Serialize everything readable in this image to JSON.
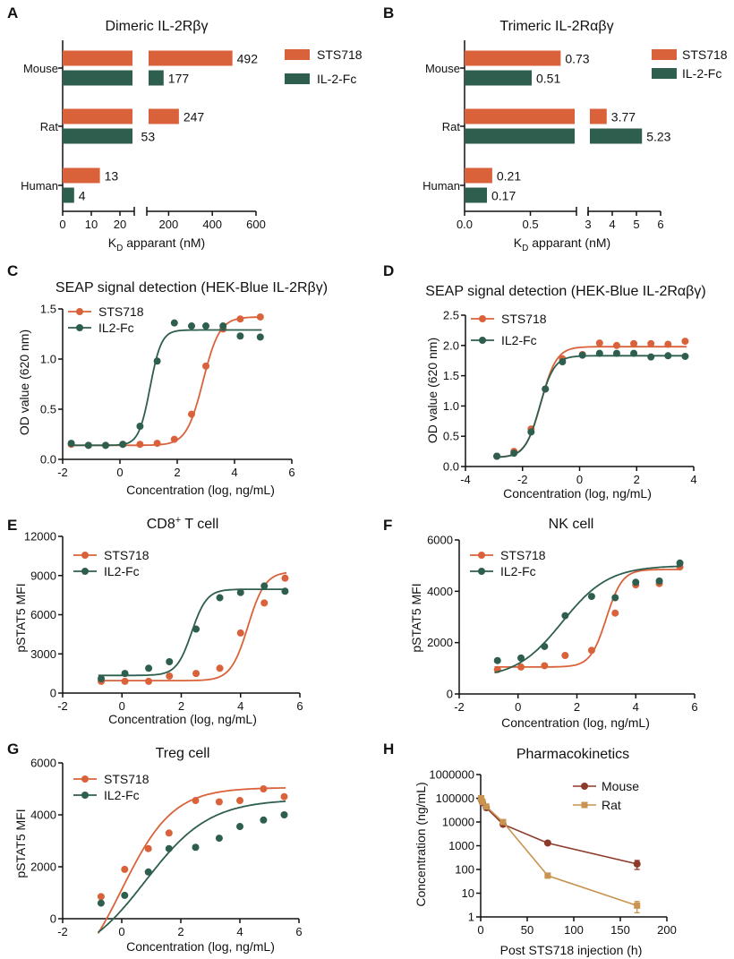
{
  "colors": {
    "sts718": "#D9623B",
    "il2fc": "#2E5E4E",
    "mouse": "#8E3A2A",
    "rat": "#C8944F"
  },
  "chart_data": [
    {
      "panel": "A",
      "type": "bar",
      "orientation": "horizontal",
      "title": "Dimeric IL-2Rβγ",
      "xlabel_main": "K",
      "xlabel_sub": "D",
      "xlabel_rest": " apparant (nM)",
      "categories": [
        "Mouse",
        "Rat",
        "Human"
      ],
      "series": [
        {
          "name": "STS718",
          "values": [
            492,
            247,
            13
          ],
          "labels": [
            "492",
            "247",
            "13"
          ]
        },
        {
          "name": "IL-2-Fc",
          "values": [
            177,
            53,
            4
          ],
          "labels": [
            "177",
            "53",
            "4"
          ]
        }
      ],
      "axis_break": {
        "low": [
          0,
          25
        ],
        "high": [
          100,
          600
        ]
      },
      "xticks_low": [
        "0",
        "10",
        "20"
      ],
      "xticks_high": [
        "200",
        "400",
        "600"
      ]
    },
    {
      "panel": "B",
      "type": "bar",
      "orientation": "horizontal",
      "title": "Trimeric IL-2Rαβγ",
      "xlabel_main": "K",
      "xlabel_sub": "D",
      "xlabel_rest": " apparant (nM)",
      "categories": [
        "Mouse",
        "Rat",
        "Human"
      ],
      "series": [
        {
          "name": "STS718",
          "values": [
            0.73,
            3.77,
            0.21
          ],
          "labels": [
            "0.73",
            "3.77",
            "0.21"
          ]
        },
        {
          "name": "IL-2-Fc",
          "values": [
            0.51,
            5.23,
            0.17
          ],
          "labels": [
            "0.51",
            "5.23",
            "0.17"
          ]
        }
      ],
      "axis_break": {
        "low": [
          0,
          0.85
        ],
        "high": [
          3,
          6
        ]
      },
      "xticks_low": [
        "0.0",
        "0.5"
      ],
      "xticks_high": [
        "3",
        "4",
        "5",
        "6"
      ]
    },
    {
      "panel": "C",
      "type": "scatter",
      "title": "SEAP signal detection (HEK-Blue IL-2Rβγ)",
      "xlabel": "Concentration (log, ng/mL)",
      "ylabel": "OD value (620 nm)",
      "xlim": [
        -2,
        6
      ],
      "ylim": [
        0,
        1.5
      ],
      "xticks": [
        -2,
        0,
        2,
        4,
        6
      ],
      "xtick_labels": [
        "-2",
        "0",
        "2",
        "4",
        "6"
      ],
      "yticks": [
        0,
        0.5,
        1,
        1.5
      ],
      "ytick_labels": [
        "0.0",
        "0.5",
        "1.0",
        "1.5"
      ],
      "legend": "top-left",
      "series": [
        {
          "name": "STS718",
          "x": [
            -1.7,
            -1.1,
            -0.5,
            0.1,
            0.7,
            1.3,
            1.9,
            2.5,
            3.0,
            3.6,
            4.2,
            4.9
          ],
          "y": [
            0.15,
            0.14,
            0.14,
            0.15,
            0.15,
            0.16,
            0.2,
            0.45,
            0.93,
            1.3,
            1.4,
            1.42
          ],
          "fit": {
            "bottom": 0.14,
            "top": 1.42,
            "ec50": 2.9,
            "slope": 1.5
          }
        },
        {
          "name": "IL2-Fc",
          "x": [
            -1.7,
            -1.1,
            -0.5,
            0.1,
            0.7,
            1.3,
            1.9,
            2.5,
            3.0,
            3.6,
            4.2,
            4.9
          ],
          "y": [
            0.16,
            0.14,
            0.14,
            0.15,
            0.33,
            0.98,
            1.36,
            1.33,
            1.33,
            1.33,
            1.23,
            1.22
          ],
          "fit": {
            "bottom": 0.14,
            "top": 1.29,
            "ec50": 1.05,
            "slope": 2.2
          }
        }
      ]
    },
    {
      "panel": "D",
      "type": "scatter",
      "title": "SEAP signal detection (HEK-Blue IL-2Rαβγ)",
      "xlabel": "Concentration (log, ng/mL)",
      "ylabel": "OD value (620 nm)",
      "xlim": [
        -4,
        4
      ],
      "ylim": [
        0,
        2.5
      ],
      "xticks": [
        -4,
        -2,
        0,
        2,
        4
      ],
      "xtick_labels": [
        "-4",
        "-2",
        "0",
        "2",
        "4"
      ],
      "yticks": [
        0,
        0.5,
        1,
        1.5,
        2,
        2.5
      ],
      "ytick_labels": [
        "0.0",
        "0.5",
        "1.0",
        "1.5",
        "2.0",
        "2.5"
      ],
      "legend": "top-left",
      "series": [
        {
          "name": "STS718",
          "x": [
            -2.9,
            -2.3,
            -1.7,
            -1.2,
            -0.6,
            0.1,
            0.7,
            1.3,
            1.9,
            2.5,
            3.1,
            3.7
          ],
          "y": [
            0.17,
            0.25,
            0.62,
            1.28,
            1.78,
            1.85,
            2.04,
            2.0,
            2.03,
            2.03,
            2.02,
            2.07
          ],
          "fit": {
            "bottom": 0.15,
            "top": 1.98,
            "ec50": -1.35,
            "slope": 1.6
          }
        },
        {
          "name": "IL2-Fc",
          "x": [
            -2.9,
            -2.3,
            -1.7,
            -1.2,
            -0.6,
            0.1,
            0.7,
            1.3,
            1.9,
            2.5,
            3.1,
            3.7
          ],
          "y": [
            0.17,
            0.22,
            0.57,
            1.28,
            1.73,
            1.84,
            1.87,
            1.87,
            1.87,
            1.81,
            1.83,
            1.82
          ],
          "fit": {
            "bottom": 0.15,
            "top": 1.83,
            "ec50": -1.4,
            "slope": 1.7
          }
        }
      ]
    },
    {
      "panel": "E",
      "type": "scatter",
      "title_main": "CD8",
      "title_sup": "+",
      "title_rest": " T cell",
      "xlabel": "Concentration (log, ng/mL)",
      "ylabel": "pSTAT5 MFI",
      "xlim": [
        -2,
        6
      ],
      "ylim": [
        0,
        12000
      ],
      "xticks": [
        -2,
        0,
        2,
        4,
        6
      ],
      "xtick_labels": [
        "-2",
        "0",
        "2",
        "4",
        "6"
      ],
      "yticks": [
        0,
        3000,
        6000,
        9000,
        12000
      ],
      "ytick_labels": [
        "0",
        "3000",
        "6000",
        "9000",
        "12000"
      ],
      "legend": "top-left",
      "series": [
        {
          "name": "STS718",
          "x": [
            -0.7,
            0.1,
            0.9,
            1.6,
            2.5,
            3.3,
            4.0,
            4.8,
            5.5
          ],
          "y": [
            900,
            900,
            900,
            1300,
            1500,
            1900,
            4600,
            6900,
            8800
          ],
          "fit": {
            "bottom": 950,
            "top": 9300,
            "ec50": 4.25,
            "slope": 1.5
          }
        },
        {
          "name": "IL2-Fc",
          "x": [
            -0.7,
            0.1,
            0.9,
            1.6,
            2.5,
            3.3,
            4.0,
            4.8,
            5.5
          ],
          "y": [
            1100,
            1500,
            1900,
            2400,
            4900,
            7300,
            7700,
            8200,
            7800
          ],
          "fit": {
            "bottom": 1350,
            "top": 7950,
            "ec50": 2.35,
            "slope": 1.7
          }
        }
      ]
    },
    {
      "panel": "F",
      "type": "scatter",
      "title": "NK cell",
      "xlabel": "Concentration (log, ng/mL)",
      "ylabel": "pSTAT5 MFI",
      "xlim": [
        -2,
        6
      ],
      "ylim": [
        0,
        6000
      ],
      "xticks": [
        -2,
        0,
        2,
        4,
        6
      ],
      "xtick_labels": [
        "-2",
        "0",
        "2",
        "4",
        "6"
      ],
      "yticks": [
        0,
        2000,
        4000,
        6000
      ],
      "ytick_labels": [
        "0",
        "2000",
        "4000",
        "6000"
      ],
      "legend": "top-left",
      "series": [
        {
          "name": "STS718",
          "x": [
            -0.7,
            0.1,
            0.9,
            1.6,
            2.5,
            3.3,
            4.0,
            4.8,
            5.5
          ],
          "y": [
            950,
            1050,
            1100,
            1500,
            1700,
            3150,
            4250,
            4300,
            4950
          ],
          "fit": {
            "bottom": 1050,
            "top": 4850,
            "ec50": 3.0,
            "slope": 1.6
          }
        },
        {
          "name": "IL2-Fc",
          "x": [
            -0.7,
            0.1,
            0.9,
            1.6,
            2.5,
            3.3,
            4.0,
            4.8,
            5.5
          ],
          "y": [
            1300,
            1400,
            1850,
            3050,
            3800,
            3750,
            4350,
            4400,
            5100
          ],
          "fit": {
            "bottom": 600,
            "top": 5000,
            "ec50": 1.5,
            "slope": 0.55
          }
        }
      ]
    },
    {
      "panel": "G",
      "type": "scatter",
      "title": "Treg cell",
      "xlabel": "Concentration (log, ng/mL)",
      "ylabel": "pSTAT5 MFI",
      "xlim": [
        -2,
        6
      ],
      "ylim": [
        0,
        6000
      ],
      "xticks": [
        -2,
        0,
        2,
        4,
        6
      ],
      "xtick_labels": [
        "-2",
        "0",
        "2",
        "4",
        "6"
      ],
      "yticks": [
        0,
        2000,
        4000,
        6000
      ],
      "ytick_labels": [
        "0",
        "2000",
        "4000",
        "6000"
      ],
      "legend": "top-left",
      "series": [
        {
          "name": "STS718",
          "x": [
            -0.7,
            0.1,
            0.9,
            1.6,
            2.5,
            3.3,
            4.0,
            4.8,
            5.5
          ],
          "y": [
            850,
            1900,
            2700,
            3300,
            4550,
            4500,
            4550,
            5000,
            4700
          ],
          "fit": {
            "bottom": -2800,
            "top": 5050,
            "ec50": 0.0,
            "slope": 0.5
          }
        },
        {
          "name": "IL2-Fc",
          "x": [
            -0.7,
            0.1,
            0.9,
            1.6,
            2.5,
            3.3,
            4.0,
            4.8,
            5.5
          ],
          "y": [
            600,
            900,
            1800,
            2700,
            2750,
            3100,
            3550,
            3800,
            4000
          ],
          "fit": {
            "bottom": -1700,
            "top": 4600,
            "ec50": 0.8,
            "slope": 0.4
          }
        }
      ]
    },
    {
      "panel": "H",
      "type": "line",
      "title": "Pharmacokinetics",
      "xlabel": "Post STS718 injection (h)",
      "ylabel": "Concentration (ng/mL)",
      "xlim": [
        0,
        200
      ],
      "yscale": "log",
      "ylim": [
        1,
        1000000
      ],
      "xticks": [
        0,
        50,
        100,
        150,
        200
      ],
      "xtick_labels": [
        "0",
        "50",
        "100",
        "150",
        "200"
      ],
      "yticks": [
        1,
        10,
        100,
        1000,
        10000,
        100000,
        1000000
      ],
      "ytick_labels": [
        "1",
        "10",
        "100",
        "1000",
        "10000",
        "100000",
        "1000000"
      ],
      "legend": "top-right",
      "series": [
        {
          "name": "Mouse",
          "marker": "circle",
          "x": [
            0.5,
            2,
            6,
            24,
            72,
            168
          ],
          "y": [
            90000,
            65000,
            40000,
            8000,
            1300,
            170
          ],
          "err": [
            20000,
            10000,
            6000,
            1500,
            150,
            70
          ]
        },
        {
          "name": "Rat",
          "marker": "square",
          "x": [
            0.5,
            2,
            6,
            24,
            72,
            168
          ],
          "y": [
            100000,
            70000,
            45000,
            10000,
            55,
            3
          ],
          "err": [
            25000,
            10000,
            6000,
            2000,
            8,
            1.5
          ]
        }
      ]
    }
  ]
}
